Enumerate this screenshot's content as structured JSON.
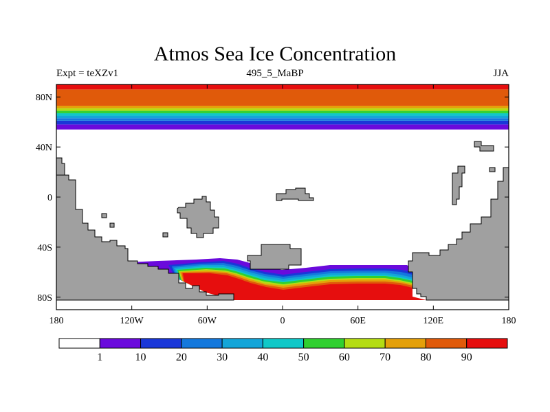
{
  "chart_data": {
    "type": "heatmap",
    "title": "Atmos Sea Ice Concentration",
    "subtitle_left": "Expt = teXZv1",
    "subtitle_center": "495_5_MaBP",
    "subtitle_right": "JJA",
    "x_ticks": [
      {
        "value": -180,
        "label": "180"
      },
      {
        "value": -120,
        "label": "120W"
      },
      {
        "value": -60,
        "label": "60W"
      },
      {
        "value": 0,
        "label": "0"
      },
      {
        "value": 60,
        "label": "60E"
      },
      {
        "value": 120,
        "label": "120E"
      },
      {
        "value": 180,
        "label": "180"
      }
    ],
    "y_ticks": [
      {
        "value": 80,
        "label": "80N"
      },
      {
        "value": 40,
        "label": "40N"
      },
      {
        "value": 0,
        "label": "0"
      },
      {
        "value": -40,
        "label": "40S"
      },
      {
        "value": -80,
        "label": "80S"
      }
    ],
    "xlim": [
      -180,
      180
    ],
    "ylim": [
      -90,
      90
    ],
    "colorbar": {
      "levels": [
        "1",
        "10",
        "20",
        "30",
        "40",
        "50",
        "60",
        "70",
        "80",
        "90"
      ],
      "colors": [
        "#ffffff",
        "#6a0adc",
        "#1a37d8",
        "#1478dc",
        "#14a5d8",
        "#10c8c8",
        "#30d030",
        "#b4dc14",
        "#e4a00a",
        "#e05a0a",
        "#e60e0e"
      ]
    },
    "northern_ice_bands": [
      {
        "lat_min": 54,
        "lat_max": 58,
        "level_index": 1
      },
      {
        "lat_min": 58,
        "lat_max": 61,
        "level_index": 2
      },
      {
        "lat_min": 61,
        "lat_max": 63,
        "level_index": 3
      },
      {
        "lat_min": 63,
        "lat_max": 65,
        "level_index": 4
      },
      {
        "lat_min": 65,
        "lat_max": 67,
        "level_index": 5
      },
      {
        "lat_min": 67,
        "lat_max": 69,
        "level_index": 6
      },
      {
        "lat_min": 69,
        "lat_max": 71,
        "level_index": 7
      },
      {
        "lat_min": 71,
        "lat_max": 73,
        "level_index": 8
      },
      {
        "lat_min": 73,
        "lat_max": 86,
        "level_index": 9
      },
      {
        "lat_min": 86,
        "lat_max": 90,
        "level_index": 10
      }
    ],
    "land_color": "#a0a0a0"
  }
}
